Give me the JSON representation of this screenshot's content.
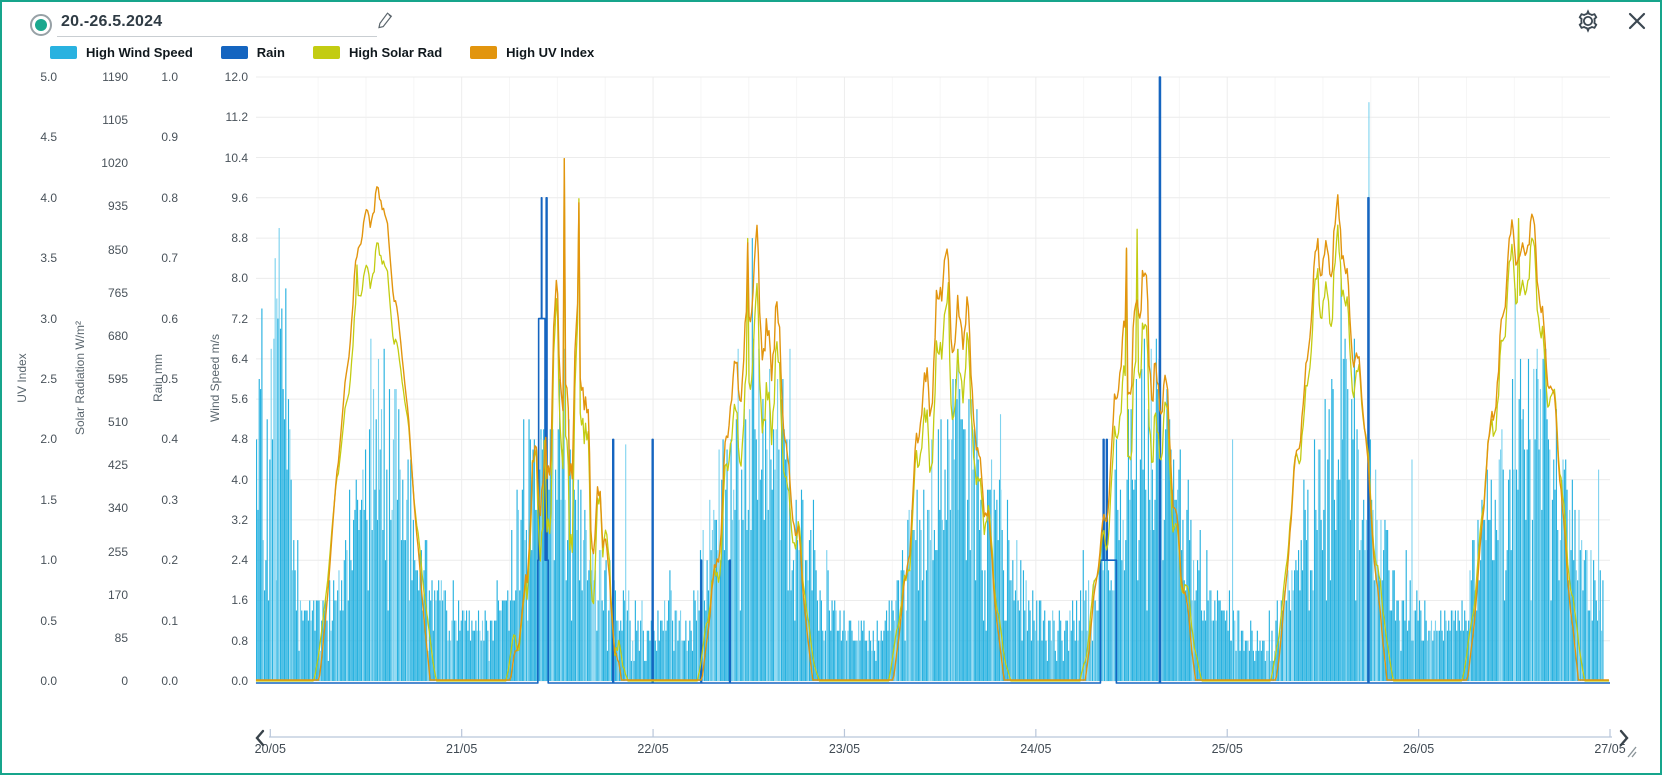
{
  "header": {
    "date_range": "20.-26.5.2024"
  },
  "colors": {
    "frame": "#17a58c",
    "radio_dot": "#1ba88e",
    "grid": "#ececec",
    "grid_day": "#ededed",
    "grid_minor": "#f6f6f6",
    "icon": "#3c4852",
    "scroll_axis": "#b9c6da",
    "wind": "#29b2e0",
    "wind_light": "#7fd3ef",
    "rain": "#1565c0",
    "solar": "#c3cc12",
    "uv": "#e2950e"
  },
  "chart_data": {
    "type": "bar",
    "seed": 42,
    "x": {
      "labels": [
        "20/05",
        "21/05",
        "22/05",
        "23/05",
        "24/05",
        "25/05",
        "26/05",
        "27/05"
      ],
      "hours_total": 168
    },
    "axes": [
      {
        "id": "uv",
        "title": "UV Index",
        "min": 0,
        "max": 5,
        "step": 0.5,
        "decimals": 1
      },
      {
        "id": "solar",
        "title": "Solar Radiation W/m²",
        "min": 0,
        "max": 1190,
        "step": 85,
        "decimals": 0
      },
      {
        "id": "rain",
        "title": "Rain mm",
        "min": 0,
        "max": 1.0,
        "step": 0.1,
        "decimals": 1
      },
      {
        "id": "wind",
        "title": "Wind Speed m/s",
        "min": 0,
        "max": 12,
        "step": 0.8,
        "decimals": 1
      }
    ],
    "series": [
      {
        "name": "High Wind Speed",
        "axis": "wind",
        "kind": "bars",
        "control_points": [
          [
            -1.8,
            4.5
          ],
          [
            0,
            5.5
          ],
          [
            0.7,
            6.4
          ],
          [
            1.4,
            7.0
          ],
          [
            2,
            5.2
          ],
          [
            2.8,
            2.6
          ],
          [
            4,
            1.6
          ],
          [
            6,
            1.2
          ],
          [
            8,
            1.6
          ],
          [
            10,
            2.8
          ],
          [
            11,
            3.6
          ],
          [
            12,
            4.2
          ],
          [
            13,
            4.6
          ],
          [
            14,
            4.8
          ],
          [
            15,
            4.4
          ],
          [
            16,
            4.2
          ],
          [
            17,
            3.6
          ],
          [
            18,
            3.0
          ],
          [
            19,
            2.4
          ],
          [
            20,
            1.8
          ],
          [
            22,
            1.3
          ],
          [
            24,
            1.1
          ],
          [
            26,
            0.9
          ],
          [
            28,
            1.3
          ],
          [
            30,
            2.2
          ],
          [
            32,
            3.6
          ],
          [
            33,
            4.2
          ],
          [
            34,
            4.6
          ],
          [
            35,
            4.2
          ],
          [
            36,
            4.4
          ],
          [
            37,
            4.0
          ],
          [
            38,
            3.4
          ],
          [
            39,
            2.8
          ],
          [
            40,
            2.4
          ],
          [
            42,
            1.8
          ],
          [
            44,
            1.4
          ],
          [
            46,
            1.1
          ],
          [
            48,
            1.1
          ],
          [
            50,
            1.3
          ],
          [
            52,
            1.2
          ],
          [
            54,
            2.0
          ],
          [
            56,
            3.2
          ],
          [
            58,
            4.2
          ],
          [
            60,
            5.0
          ],
          [
            61,
            5.6
          ],
          [
            62,
            5.2
          ],
          [
            63,
            4.8
          ],
          [
            64,
            4.2
          ],
          [
            65,
            3.6
          ],
          [
            66,
            3.0
          ],
          [
            68,
            2.1
          ],
          [
            70,
            1.5
          ],
          [
            72,
            1.2
          ],
          [
            74,
            0.9
          ],
          [
            76,
            0.8
          ],
          [
            78,
            1.3
          ],
          [
            80,
            2.4
          ],
          [
            82,
            3.4
          ],
          [
            84,
            4.2
          ],
          [
            86,
            4.6
          ],
          [
            87,
            4.4
          ],
          [
            88,
            4.0
          ],
          [
            89,
            3.6
          ],
          [
            90,
            3.2
          ],
          [
            91,
            3.6
          ],
          [
            92,
            3.4
          ],
          [
            93,
            2.6
          ],
          [
            94,
            1.8
          ],
          [
            96,
            1.3
          ],
          [
            98,
            1.0
          ],
          [
            100,
            1.1
          ],
          [
            102,
            1.5
          ],
          [
            104,
            2.0
          ],
          [
            106,
            3.0
          ],
          [
            108,
            4.2
          ],
          [
            110,
            5.0
          ],
          [
            111,
            5.4
          ],
          [
            112,
            4.8
          ],
          [
            113,
            4.2
          ],
          [
            114,
            3.4
          ],
          [
            116,
            2.4
          ],
          [
            118,
            1.6
          ],
          [
            120,
            1.3
          ],
          [
            122,
            1.0
          ],
          [
            124,
            0.8
          ],
          [
            126,
            1.1
          ],
          [
            128,
            2.0
          ],
          [
            130,
            3.2
          ],
          [
            132,
            4.2
          ],
          [
            134,
            4.8
          ],
          [
            135,
            5.0
          ],
          [
            136,
            4.4
          ],
          [
            137,
            3.8
          ],
          [
            138,
            3.4
          ],
          [
            139,
            2.8
          ],
          [
            140,
            2.2
          ],
          [
            142,
            1.6
          ],
          [
            144,
            1.3
          ],
          [
            146,
            1.0
          ],
          [
            148,
            1.1
          ],
          [
            150,
            1.6
          ],
          [
            152,
            2.6
          ],
          [
            154,
            3.6
          ],
          [
            156,
            4.4
          ],
          [
            158,
            5.2
          ],
          [
            159,
            5.4
          ],
          [
            160,
            4.8
          ],
          [
            161,
            4.2
          ],
          [
            162,
            3.6
          ],
          [
            164,
            2.6
          ],
          [
            166,
            1.8
          ],
          [
            168,
            1.4
          ]
        ],
        "gusts": [
          [
            0.75,
            7.6
          ],
          [
            13.5,
            6.4
          ],
          [
            33.9,
            4.8
          ],
          [
            36.8,
            6.6
          ],
          [
            44.5,
            4.7
          ],
          [
            58.6,
            6.6
          ],
          [
            61.2,
            6.6
          ],
          [
            65.1,
            6.6
          ],
          [
            86.2,
            6.6
          ],
          [
            91.5,
            5.3
          ],
          [
            110.4,
            6.6
          ],
          [
            120.6,
            4.8
          ],
          [
            134.3,
            6.4
          ],
          [
            137.7,
            11.5
          ],
          [
            143.1,
            4.4
          ],
          [
            158.8,
            6.6
          ],
          [
            166.5,
            4.2
          ]
        ]
      },
      {
        "name": "Rain",
        "axis": "rain",
        "kind": "step",
        "points": [
          [
            -1.8,
            0
          ],
          [
            33.55,
            0
          ],
          [
            33.55,
            0.2
          ],
          [
            33.65,
            0.2
          ],
          [
            33.65,
            0.6
          ],
          [
            34.0,
            0.6
          ],
          [
            34.0,
            0.8
          ],
          [
            34.05,
            0.8
          ],
          [
            34.05,
            0.6
          ],
          [
            34.45,
            0.6
          ],
          [
            34.45,
            0.2
          ],
          [
            34.6,
            0.2
          ],
          [
            34.6,
            0.8
          ],
          [
            34.7,
            0.8
          ],
          [
            34.7,
            0.2
          ],
          [
            34.85,
            0.2
          ],
          [
            34.85,
            0
          ],
          [
            42.95,
            0
          ],
          [
            42.95,
            0.4
          ],
          [
            43.05,
            0.4
          ],
          [
            43.05,
            0
          ],
          [
            47.9,
            0
          ],
          [
            47.9,
            0.4
          ],
          [
            48.0,
            0.4
          ],
          [
            48.0,
            0
          ],
          [
            54.0,
            0
          ],
          [
            54.0,
            0.2
          ],
          [
            54.08,
            0.2
          ],
          [
            54.08,
            0
          ],
          [
            57.6,
            0
          ],
          [
            57.6,
            0.2
          ],
          [
            57.68,
            0.2
          ],
          [
            57.68,
            0
          ],
          [
            104.1,
            0
          ],
          [
            104.1,
            0.2
          ],
          [
            104.45,
            0.2
          ],
          [
            104.45,
            0.4
          ],
          [
            104.55,
            0.4
          ],
          [
            104.55,
            0.2
          ],
          [
            104.85,
            0.2
          ],
          [
            104.85,
            0.4
          ],
          [
            104.95,
            0.4
          ],
          [
            104.95,
            0.2
          ],
          [
            106.1,
            0.2
          ],
          [
            106.1,
            0
          ],
          [
            111.5,
            0
          ],
          [
            111.5,
            1.0
          ],
          [
            111.62,
            1.0
          ],
          [
            111.62,
            0
          ],
          [
            137.65,
            0
          ],
          [
            137.65,
            0.8
          ],
          [
            137.77,
            0.8
          ],
          [
            137.77,
            0
          ],
          [
            168,
            0
          ]
        ]
      },
      {
        "name": "High Solar Rad",
        "axis": "solar",
        "kind": "daycurve",
        "sunrise": 5.4,
        "sunset": 20.9,
        "days": [
          {
            "peak": 920,
            "cloud": 0.15,
            "bursts": [
              [
                10.9,
                940
              ]
            ]
          },
          {
            "peak": 980,
            "cloud": 0.78,
            "bursts": [
              [
                12.9,
                1180
              ],
              [
                10.3,
                820
              ],
              [
                14.7,
                950
              ],
              [
                15.3,
                760
              ]
            ]
          },
          {
            "peak": 900,
            "cloud": 0.5,
            "bursts": [
              [
                11.9,
                1000
              ],
              [
                13.3,
                920
              ]
            ]
          },
          {
            "peak": 890,
            "cloud": 0.45,
            "bursts": [
              [
                11.6,
                980
              ],
              [
                13.0,
                900
              ]
            ]
          },
          {
            "peak": 870,
            "cloud": 0.5,
            "bursts": [
              [
                11.4,
                975
              ],
              [
                12.7,
                890
              ]
            ]
          },
          {
            "peak": 985,
            "cloud": 0.3,
            "bursts": [
              [
                12.6,
                1045
              ]
            ]
          },
          {
            "peak": 1000,
            "cloud": 0.3,
            "bursts": [
              [
                12.5,
                1045
              ],
              [
                14.0,
                980
              ],
              [
                11.0,
                820
              ]
            ]
          }
        ]
      },
      {
        "name": "High UV Index",
        "axis": "uv",
        "kind": "daycurve",
        "sunrise": 6.1,
        "sunset": 20.1,
        "days": [
          {
            "peak": 4.3,
            "cloud": 0.12,
            "bursts": []
          },
          {
            "peak": 4.1,
            "cloud": 0.62,
            "bursts": [
              [
                12.9,
                4.95
              ],
              [
                14.7,
                3.95
              ]
            ]
          },
          {
            "peak": 4.2,
            "cloud": 0.4,
            "bursts": [
              [
                11.9,
                4.15
              ]
            ]
          },
          {
            "peak": 4.1,
            "cloud": 0.36,
            "bursts": [
              [
                11.6,
                4.1
              ]
            ]
          },
          {
            "peak": 4.0,
            "cloud": 0.4,
            "bursts": [
              [
                11.4,
                4.1
              ]
            ]
          },
          {
            "peak": 4.35,
            "cloud": 0.24,
            "bursts": []
          },
          {
            "peak": 4.35,
            "cloud": 0.24,
            "bursts": []
          }
        ]
      }
    ]
  }
}
